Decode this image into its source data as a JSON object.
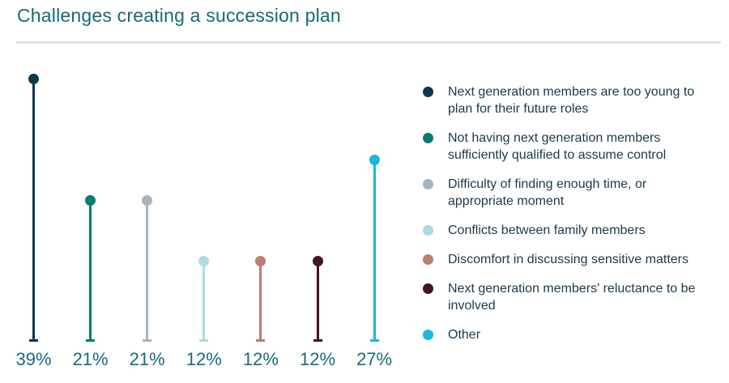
{
  "title": "Challenges creating a succession plan",
  "chart_data": {
    "type": "lollipop",
    "title": "Challenges creating a succession plan",
    "categories": [
      "Next generation members are too young to plan for their future roles",
      "Not having next generation members sufficiently qualified to assume control",
      "Difficulty of finding enough time, or appropriate moment",
      "Conflicts between family members",
      "Discomfort in discussing sensitive matters",
      "Next generation members' reluctance to be involved",
      "Other"
    ],
    "values": [
      39,
      21,
      21,
      12,
      12,
      12,
      27
    ],
    "labels": [
      "39%",
      "21%",
      "21%",
      "12%",
      "12%",
      "12%",
      "27%"
    ],
    "series_colors": [
      "#0D3A4A",
      "#0A7C6D",
      "#A6B5C2",
      "#ACDCDF",
      "#B97F70",
      "#441520",
      "#19B7D9"
    ],
    "legend_position": "right",
    "ylim": [
      0,
      40
    ],
    "grid": false,
    "value_axis_visible": false
  },
  "colors": {
    "title_text": "#17697A",
    "value_label_text": "#196A7B",
    "legend_text": "#1B3A4C",
    "divider": "#E1E1E1",
    "background": "#FFFFFF"
  }
}
